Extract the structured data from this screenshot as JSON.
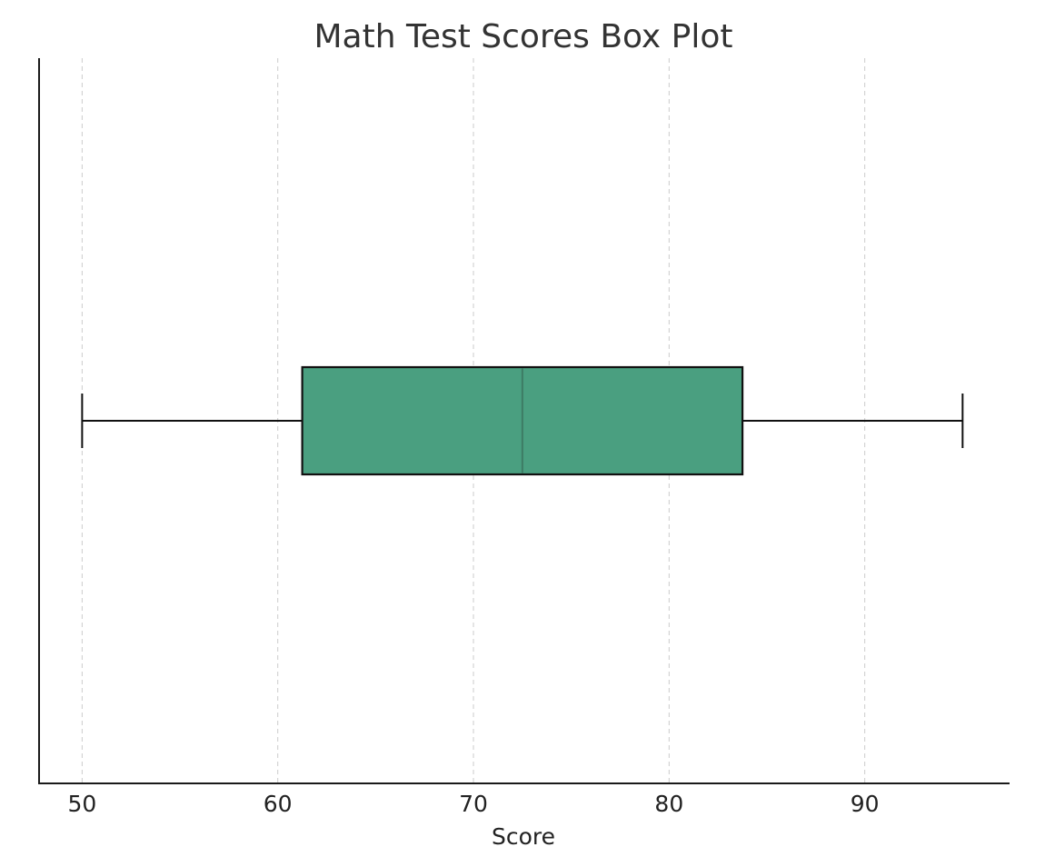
{
  "chart_data": {
    "type": "box",
    "title": "Math Test Scores Box Plot",
    "xlabel": "Score",
    "ylabel": "",
    "orientation": "horizontal",
    "xlim": [
      47.8,
      97.4
    ],
    "xticks": [
      50,
      60,
      70,
      80,
      90
    ],
    "grid": "vertical dashed",
    "box": {
      "whisker_low": 50,
      "q1": 61.25,
      "median": 72.5,
      "q3": 83.75,
      "whisker_high": 95
    },
    "colors": {
      "box_fill": "#4a9f80",
      "median": "#3d7b64",
      "edges": "#111111"
    }
  }
}
